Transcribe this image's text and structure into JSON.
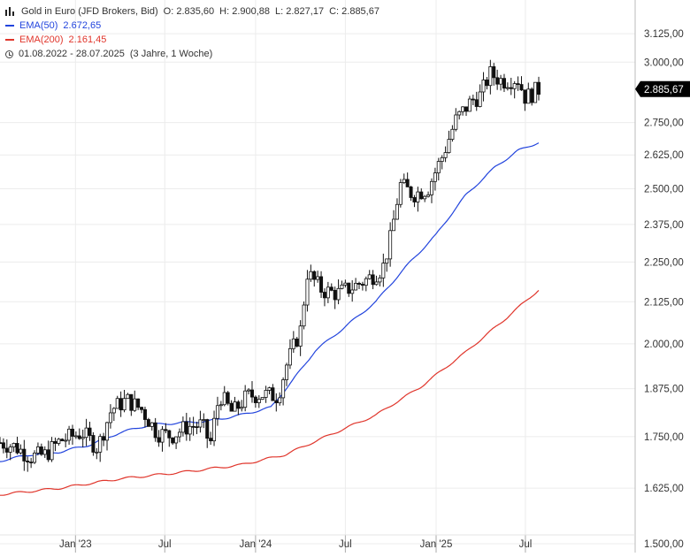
{
  "header": {
    "title": "Gold in Euro (JFD Brokers, Bid)",
    "ohlc": {
      "open": "O: 2.835,60",
      "high": "H: 2.900,88",
      "low": "L: 2.827,17",
      "close": "C: 2.885,67"
    },
    "ema50": {
      "label": "EMA(50)",
      "value": "2.672,65",
      "color": "#2244dd"
    },
    "ema200": {
      "label": "EMA(200)",
      "value": "2.161,45",
      "color": "#e0352b"
    },
    "range": "01.08.2022 - 28.07.2025",
    "duration": "(3 Jahre, 1 Woche)"
  },
  "chart_data": {
    "type": "candlestick",
    "y_scale": "log",
    "ylim": [
      1500,
      3190
    ],
    "y_ticks": [
      {
        "value": 3125,
        "label": "3.125,00"
      },
      {
        "value": 3000,
        "label": "3.000,00"
      },
      {
        "value": 2750,
        "label": "2.750,00"
      },
      {
        "value": 2625,
        "label": "2.625,00"
      },
      {
        "value": 2500,
        "label": "2.500,00"
      },
      {
        "value": 2375,
        "label": "2.375,00"
      },
      {
        "value": 2250,
        "label": "2.250,00"
      },
      {
        "value": 2125,
        "label": "2.125,00"
      },
      {
        "value": 2000,
        "label": "2.000,00"
      },
      {
        "value": 1875,
        "label": "1.875,00"
      },
      {
        "value": 1750,
        "label": "1.750,00"
      },
      {
        "value": 1625,
        "label": "1.625,00"
      },
      {
        "value": 1500,
        "label": "1.500,00"
      }
    ],
    "x_ticks": [
      {
        "date": "2023-01-01",
        "label": "Jan '23"
      },
      {
        "date": "2023-07-01",
        "label": "Jul"
      },
      {
        "date": "2024-01-01",
        "label": "Jan '24"
      },
      {
        "date": "2024-07-01",
        "label": "Jul"
      },
      {
        "date": "2025-01-01",
        "label": "Jan '25"
      },
      {
        "date": "2025-07-01",
        "label": "Jul"
      }
    ],
    "x_range": [
      "2022-08-01",
      "2025-07-28"
    ],
    "last_price": {
      "value": 2885.67,
      "label": "2.885,67",
      "color": "#000000"
    },
    "close_path": [
      [
        "2022-08-01",
        1735
      ],
      [
        "2022-09-01",
        1725
      ],
      [
        "2022-10-01",
        1700
      ],
      [
        "2022-11-01",
        1705
      ],
      [
        "2022-12-01",
        1740
      ],
      [
        "2023-01-15",
        1760
      ],
      [
        "2023-02-15",
        1722
      ],
      [
        "2023-03-15",
        1820
      ],
      [
        "2023-04-15",
        1845
      ],
      [
        "2023-05-15",
        1820
      ],
      [
        "2023-06-15",
        1760
      ],
      [
        "2023-07-15",
        1752
      ],
      [
        "2023-08-15",
        1775
      ],
      [
        "2023-09-15",
        1780
      ],
      [
        "2023-10-01",
        1730
      ],
      [
        "2023-10-20",
        1860
      ],
      [
        "2023-11-15",
        1810
      ],
      [
        "2023-12-15",
        1855
      ],
      [
        "2024-01-15",
        1860
      ],
      [
        "2024-02-15",
        1855
      ],
      [
        "2024-03-05",
        1945
      ],
      [
        "2024-04-01",
        2040
      ],
      [
        "2024-04-15",
        2215
      ],
      [
        "2024-05-15",
        2160
      ],
      [
        "2024-06-15",
        2150
      ],
      [
        "2024-07-15",
        2170
      ],
      [
        "2024-08-15",
        2195
      ],
      [
        "2024-09-15",
        2230
      ],
      [
        "2024-10-01",
        2330
      ],
      [
        "2024-10-20",
        2515
      ],
      [
        "2024-11-15",
        2480
      ],
      [
        "2024-12-15",
        2500
      ],
      [
        "2025-01-15",
        2625
      ],
      [
        "2025-02-10",
        2760
      ],
      [
        "2025-03-15",
        2840
      ],
      [
        "2025-04-01",
        2860
      ],
      [
        "2025-04-20",
        2950
      ],
      [
        "2025-05-15",
        2920
      ],
      [
        "2025-06-15",
        2930
      ],
      [
        "2025-07-01",
        2850
      ],
      [
        "2025-07-28",
        2885
      ]
    ],
    "series": [
      {
        "name": "EMA(50)",
        "color": "#2244dd",
        "points": [
          [
            "2022-08-01",
            1690
          ],
          [
            "2022-10-01",
            1705
          ],
          [
            "2022-12-01",
            1712
          ],
          [
            "2023-02-01",
            1730
          ],
          [
            "2023-04-01",
            1760
          ],
          [
            "2023-06-01",
            1780
          ],
          [
            "2023-08-01",
            1785
          ],
          [
            "2023-10-01",
            1790
          ],
          [
            "2023-12-01",
            1805
          ],
          [
            "2024-02-01",
            1825
          ],
          [
            "2024-03-15",
            1895
          ],
          [
            "2024-05-01",
            1980
          ],
          [
            "2024-07-01",
            2050
          ],
          [
            "2024-09-01",
            2125
          ],
          [
            "2024-11-01",
            2235
          ],
          [
            "2025-01-01",
            2340
          ],
          [
            "2025-03-01",
            2475
          ],
          [
            "2025-05-01",
            2580
          ],
          [
            "2025-06-15",
            2640
          ],
          [
            "2025-07-28",
            2672.65
          ]
        ]
      },
      {
        "name": "EMA(200)",
        "color": "#e0352b",
        "points": [
          [
            "2022-08-01",
            1610
          ],
          [
            "2022-12-01",
            1625
          ],
          [
            "2023-04-01",
            1647
          ],
          [
            "2023-08-01",
            1662
          ],
          [
            "2023-12-01",
            1680
          ],
          [
            "2024-03-01",
            1705
          ],
          [
            "2024-06-01",
            1755
          ],
          [
            "2024-09-01",
            1805
          ],
          [
            "2024-12-01",
            1880
          ],
          [
            "2025-03-01",
            1975
          ],
          [
            "2025-05-15",
            2065
          ],
          [
            "2025-07-28",
            2161.45
          ]
        ]
      }
    ]
  }
}
